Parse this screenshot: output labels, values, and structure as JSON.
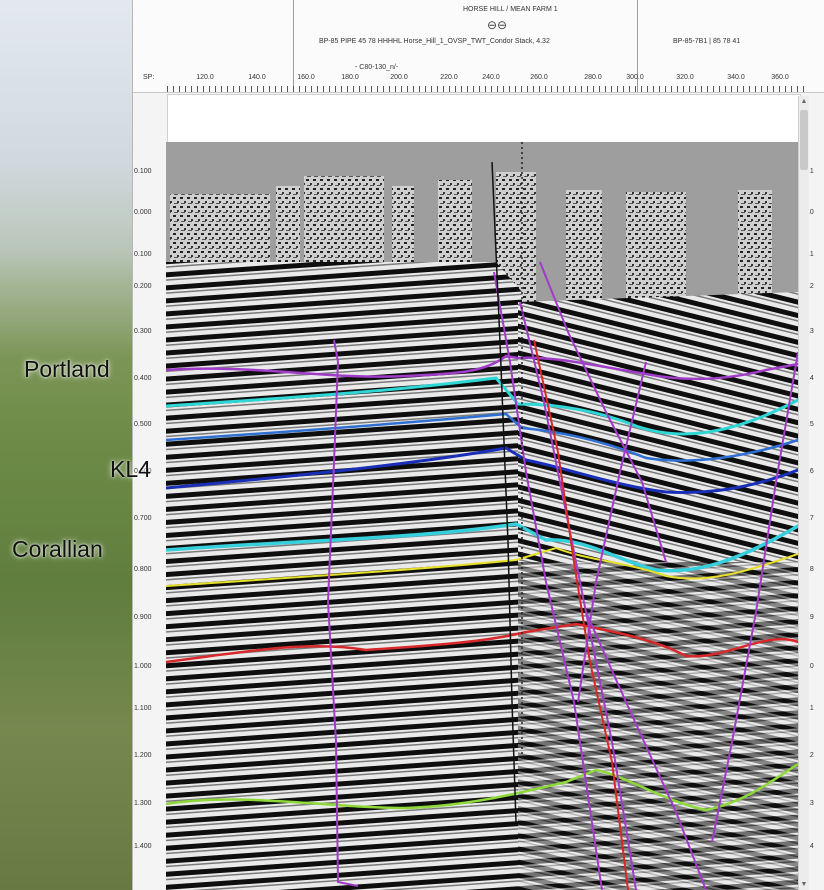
{
  "header": {
    "well_name": "HORSE HILL / MEAN FARM 1",
    "well_symbol": "⊖⊖",
    "well_line": "BP-85 PIPE 45 78 HHHHL Horse_Hill_1_OVSP_TWT_Condor Stack, 4.32",
    "right_line": "BP-85-7B1 | 85 78 41",
    "sub_line": "- C80-130_n/-"
  },
  "axis": {
    "sp_label": "SP:",
    "sp_ticks": [
      "120.0",
      "140.0",
      "160.0",
      "180.0",
      "200.0",
      "220.0",
      "240.0",
      "260.0",
      "280.0",
      "300.0",
      "320.0",
      "340.0",
      "360.0"
    ],
    "time_ticks": [
      "0.100",
      "0.000",
      "0.100",
      "0.200",
      "0.300",
      "0.400",
      "0.500",
      "0.600",
      "0.700",
      "0.800",
      "0.900",
      "1.000",
      "1.100",
      "1.200",
      "1.300",
      "1.400"
    ],
    "time_ticks_right": [
      "0.1",
      "0.0",
      "0.1",
      "0.2",
      "0.3",
      "0.4",
      "0.5",
      "0.6",
      "0.7",
      "0.8",
      "0.9",
      "1.0",
      "1.1",
      "1.2",
      "1.3",
      "1.4"
    ]
  },
  "labels": {
    "portland": "Portland",
    "kl4": "KL4",
    "corallian": "Corallian"
  },
  "horizon_colors": {
    "portland": "#a03cc8",
    "cyan": "#2fd6d6",
    "kl4_light": "#2e6fd4",
    "kl4_dark": "#1a2fb8",
    "corallian": "#35d0dc",
    "yellow": "#e6e028",
    "red": "#d8282a",
    "green": "#8fd83a",
    "faults": "#a03cc8"
  },
  "scrollbar": {
    "up": "▲",
    "down": "▼"
  }
}
